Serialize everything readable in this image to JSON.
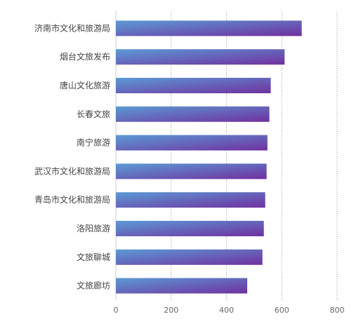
{
  "chart_data": {
    "type": "bar",
    "orientation": "horizontal",
    "categories": [
      "济南市文化和旅游局",
      "烟台文旅发布",
      "唐山文化旅游",
      "长春文旅",
      "南宁旅游",
      "武汉市文化和旅游局",
      "青岛市文化和旅游局",
      "洛阳旅游",
      "文旅聊城",
      "文旅廊坊"
    ],
    "values": [
      672,
      610,
      560,
      555,
      548,
      545,
      540,
      535,
      530,
      475
    ],
    "xlim": [
      0,
      800
    ],
    "xticks": [
      "0",
      "200",
      "400",
      "600",
      "800"
    ],
    "grid": "vertical dotted",
    "colors": {
      "bar_start": "#5B9BD5",
      "bar_end": "#7030A0",
      "grid": "#999999",
      "axis": "#cccccc"
    }
  }
}
